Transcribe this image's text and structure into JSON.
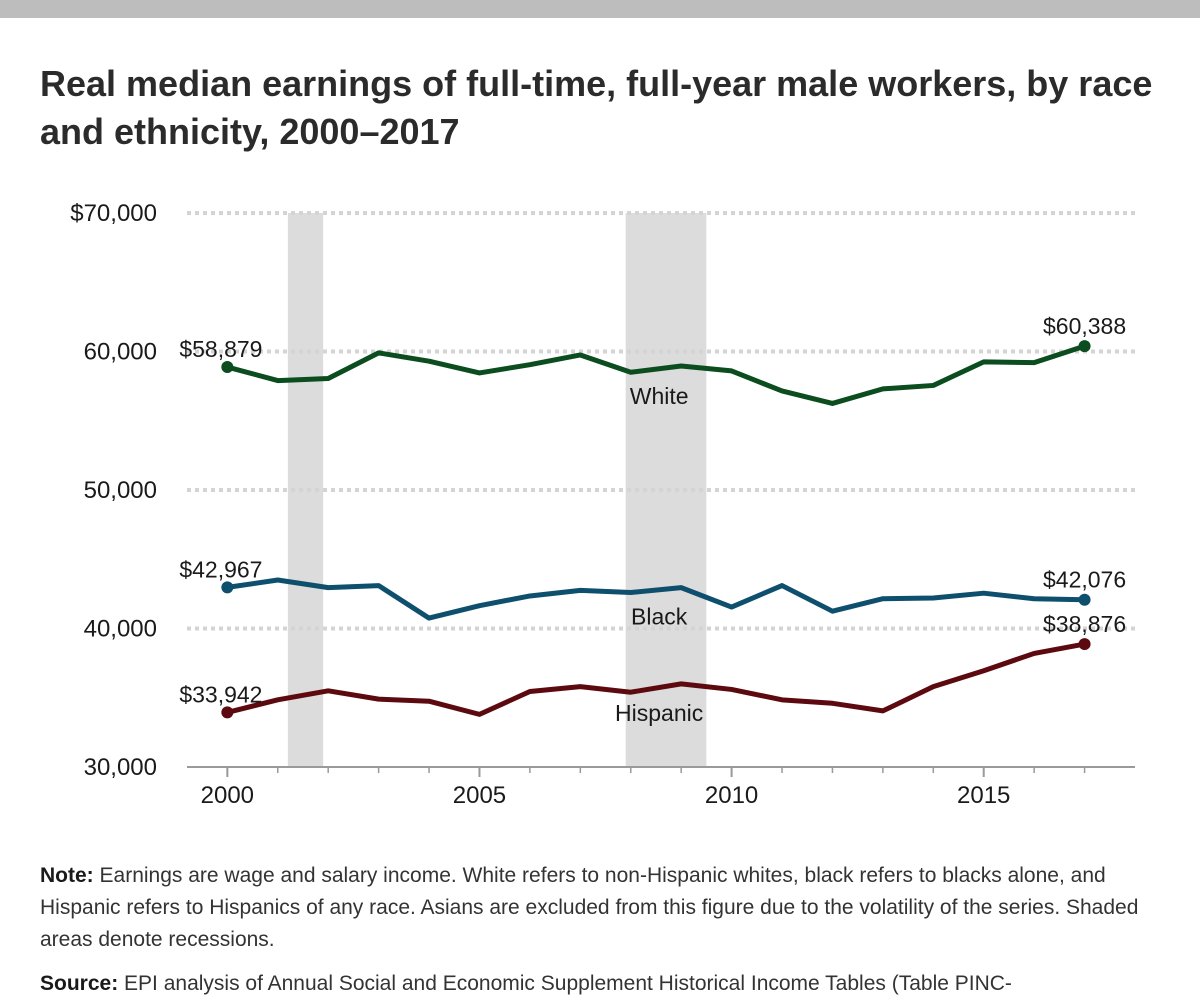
{
  "header": {
    "title": "Real median earnings of full-time, full-year male workers, by race and ethnicity, 2000–2017"
  },
  "footer": {
    "note_label": "Note:",
    "note_text": "Earnings are wage and salary income. White refers to non-Hispanic whites, black refers to blacks alone, and Hispanic refers to Hispanics of any race. Asians are excluded from this figure due to the volatility of the series. Shaded areas denote recessions.",
    "source_label": "Source:",
    "source_text": "EPI analysis of Annual Social and Economic Supplement Historical Income Tables (Table PINC-"
  },
  "chart_data": {
    "type": "line",
    "title": "Real median earnings of full-time, full-year male workers, by race and ethnicity, 2000–2017",
    "xlabel": "",
    "ylabel": "",
    "x": [
      2000,
      2001,
      2002,
      2003,
      2004,
      2005,
      2006,
      2007,
      2008,
      2009,
      2010,
      2011,
      2012,
      2013,
      2014,
      2015,
      2016,
      2017
    ],
    "xlim": [
      1999.2,
      2018.0
    ],
    "ylim": [
      30000,
      70000
    ],
    "x_ticks": [
      2000,
      2005,
      2010,
      2015
    ],
    "x_tick_labels": [
      "2000",
      "2005",
      "2010",
      "2015"
    ],
    "y_ticks": [
      30000,
      40000,
      50000,
      60000,
      70000
    ],
    "y_tick_labels": [
      "30,000",
      "40,000",
      "50,000",
      "60,000",
      "$70,000"
    ],
    "grid": true,
    "recessions": [
      [
        2001.2,
        2001.9
      ],
      [
        2007.9,
        2009.5
      ]
    ],
    "series": [
      {
        "name": "White",
        "color": "#0b4d1e",
        "values": [
          58879,
          57900,
          58050,
          59900,
          59300,
          58450,
          59050,
          59750,
          58500,
          58950,
          58600,
          57150,
          56250,
          57300,
          57550,
          59250,
          59200,
          60388
        ],
        "label_x": 2009.0,
        "label_y": 56800,
        "start_label": "$58,879",
        "end_label": "$60,388"
      },
      {
        "name": "Black",
        "color": "#0e4f6e",
        "values": [
          42967,
          43500,
          42950,
          43100,
          40750,
          41650,
          42350,
          42750,
          42600,
          42950,
          41550,
          43100,
          41250,
          42150,
          42200,
          42550,
          42150,
          42076
        ],
        "label_x": 2009.0,
        "label_y": 40850,
        "start_label": "$42,967",
        "end_label": "$42,076"
      },
      {
        "name": "Hispanic",
        "color": "#5c0a0f",
        "values": [
          33942,
          34850,
          35500,
          34900,
          34750,
          33800,
          35450,
          35800,
          35400,
          36000,
          35600,
          34850,
          34600,
          34050,
          35800,
          36950,
          38200,
          38876
        ],
        "label_x": 2009.0,
        "label_y": 33900,
        "start_label": "$33,942",
        "end_label": "$38,876"
      }
    ]
  }
}
